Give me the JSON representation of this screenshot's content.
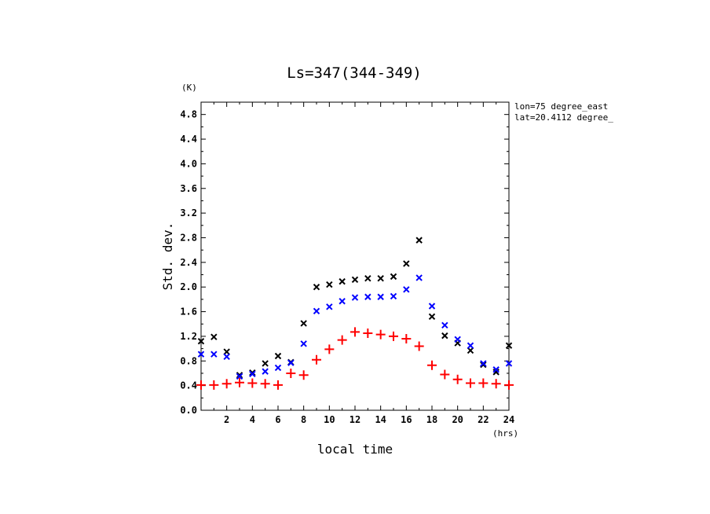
{
  "chart_data": {
    "type": "scatter",
    "title": "Ls=347(344-349)",
    "xlabel": "local time",
    "ylabel": "Std. dev.",
    "x_unit": "(hrs)",
    "y_unit": "(K)",
    "xlim": [
      0,
      24
    ],
    "ylim": [
      0,
      5.0
    ],
    "x_ticks": [
      2,
      4,
      6,
      8,
      10,
      12,
      14,
      16,
      18,
      20,
      22,
      24
    ],
    "y_ticks": [
      0.0,
      0.4,
      0.8,
      1.2,
      1.6,
      2.0,
      2.4,
      2.8,
      3.2,
      3.6,
      4.0,
      4.4,
      4.8
    ],
    "grid": false,
    "annotations": [
      "lon=75 degree_east",
      "lat=20.4112 degree_"
    ],
    "x": [
      0,
      1,
      2,
      3,
      4,
      5,
      6,
      7,
      8,
      9,
      10,
      11,
      12,
      13,
      14,
      15,
      16,
      17,
      18,
      19,
      20,
      21,
      22,
      23,
      24
    ],
    "series": [
      {
        "color": "#000000",
        "marker": "x",
        "values": [
          1.12,
          1.19,
          0.95,
          0.57,
          0.61,
          0.76,
          0.88,
          0.78,
          1.41,
          2.0,
          2.04,
          2.09,
          2.12,
          2.14,
          2.14,
          2.17,
          2.38,
          2.76,
          1.52,
          1.21,
          1.09,
          0.97,
          0.74,
          0.62,
          1.05
        ]
      },
      {
        "color": "#0000ff",
        "marker": "x",
        "values": [
          0.91,
          0.91,
          0.87,
          0.55,
          0.59,
          0.63,
          0.69,
          0.77,
          1.08,
          1.61,
          1.68,
          1.77,
          1.83,
          1.84,
          1.84,
          1.85,
          1.96,
          2.15,
          1.69,
          1.38,
          1.15,
          1.05,
          0.76,
          0.66,
          0.76
        ]
      },
      {
        "color": "#ff0000",
        "marker": "+",
        "values": [
          0.41,
          0.41,
          0.43,
          0.45,
          0.44,
          0.43,
          0.41,
          0.6,
          0.57,
          0.82,
          0.99,
          1.14,
          1.27,
          1.25,
          1.23,
          1.2,
          1.16,
          1.04,
          0.73,
          0.58,
          0.5,
          0.44,
          0.44,
          0.43,
          0.41
        ]
      }
    ]
  }
}
